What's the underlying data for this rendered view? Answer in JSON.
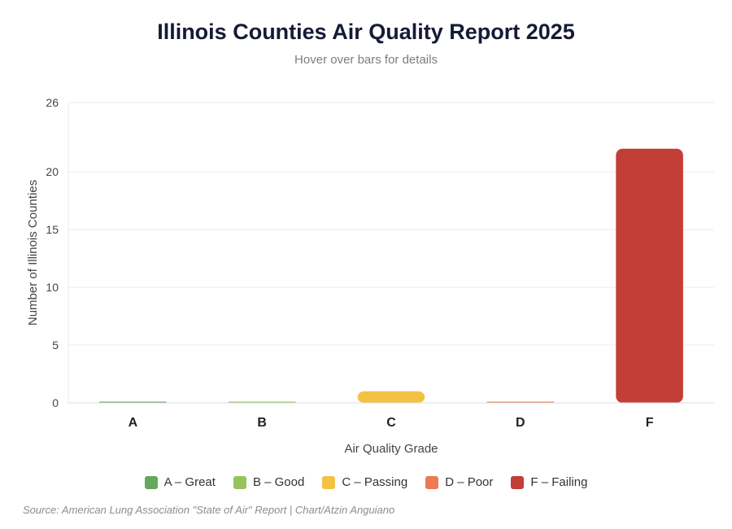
{
  "title": "Illinois Counties Air Quality Report 2025",
  "subtitle": "Hover over bars for details",
  "source": "Source: American Lung Association \"State of Air\" Report | Chart/Atzin Anguiano",
  "chart_data": {
    "type": "bar",
    "categories": [
      "A",
      "B",
      "C",
      "D",
      "F"
    ],
    "values": [
      0,
      0,
      1,
      0,
      22
    ],
    "colors": [
      "#64a85e",
      "#95c45a",
      "#f3c244",
      "#ec7a53",
      "#c23e37"
    ],
    "legend": [
      "A – Great",
      "B – Good",
      "C – Passing",
      "D – Poor",
      "F – Failing"
    ],
    "xlabel": "Air Quality Grade",
    "ylabel": "Number of Illinois Counties",
    "ylim": [
      0,
      26
    ],
    "yticks": [
      0,
      5,
      10,
      15,
      20,
      26
    ],
    "grid": true,
    "legend_position": "bottom"
  }
}
